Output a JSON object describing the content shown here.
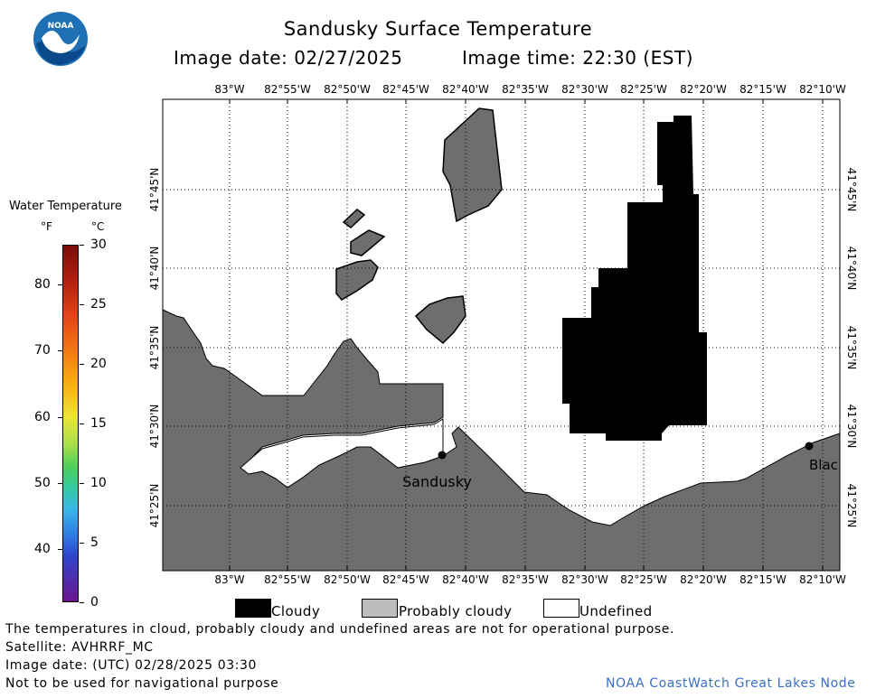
{
  "header": {
    "title": "Sandusky Surface Temperature",
    "image_date_label": "Image date: 02/27/2025",
    "image_time_label": "Image time: 22:30 (EST)"
  },
  "logo": {
    "text": "NOAA"
  },
  "map": {
    "lon_labels": [
      "83°W",
      "82°55'W",
      "82°50'W",
      "82°45'W",
      "82°40'W",
      "82°35'W",
      "82°30'W",
      "82°25'W",
      "82°20'W",
      "82°15'W",
      "82°10'W"
    ],
    "lat_labels": [
      "41°45'N",
      "41°40'N",
      "41°35'N",
      "41°30'N",
      "41°25'N"
    ],
    "places": [
      {
        "name": "Sandusky"
      },
      {
        "name": "Blac"
      }
    ],
    "colors": {
      "land": "#6e6e6e",
      "cloudy": "#000000",
      "probably_cloudy": "#6e6e6e",
      "undefined": "#ffffff"
    }
  },
  "color_scale": {
    "title": "Water Temperature",
    "unit_f": "°F",
    "unit_c": "°C",
    "f_ticks": [
      "80",
      "70",
      "60",
      "50",
      "40"
    ],
    "c_ticks": [
      "30",
      "25",
      "20",
      "15",
      "10",
      "5",
      "0"
    ]
  },
  "legend": {
    "cloudy": "Cloudy",
    "probably_cloudy": "Probably cloudy",
    "undefined": "Undefined"
  },
  "footer": {
    "disclaimer": "The temperatures in cloud, probably cloudy and undefined areas are not for operational purpose.",
    "satellite": "Satellite: AVHRRF_MC",
    "utc_date": "Image date: (UTC) 02/28/2025  03:30",
    "nav_warning": "Not to be used for navigational purpose",
    "credit": "NOAA CoastWatch Great Lakes Node"
  }
}
